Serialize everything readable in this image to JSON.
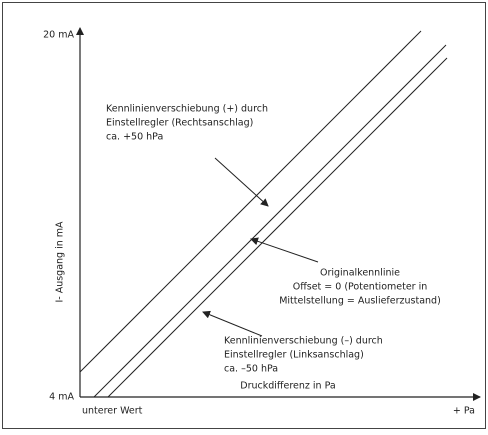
{
  "axes": {
    "y_top": "20 mA",
    "y_bottom": "4 mA",
    "y_label": "I- Ausgang in mA",
    "x_label": "Druckdifferenz in Pa",
    "x_left": "unterer Wert",
    "x_right": "+ Pa"
  },
  "annotations": [
    {
      "lines": [
        "Kennlinienverschiebung (+) durch",
        "Einstellregler (Rechtsanschlag)",
        "ca. +50 hPa"
      ]
    },
    {
      "lines": [
        "Originalkennlinie",
        "Offset = 0 (Potentiometer in",
        "Mittelstellung = Auslieferzustand)"
      ]
    },
    {
      "lines": [
        "Kennlinienverschiebung (–) durch",
        "Einstellregler (Linksanschlag)",
        "ca. –50 hPa"
      ]
    }
  ]
}
